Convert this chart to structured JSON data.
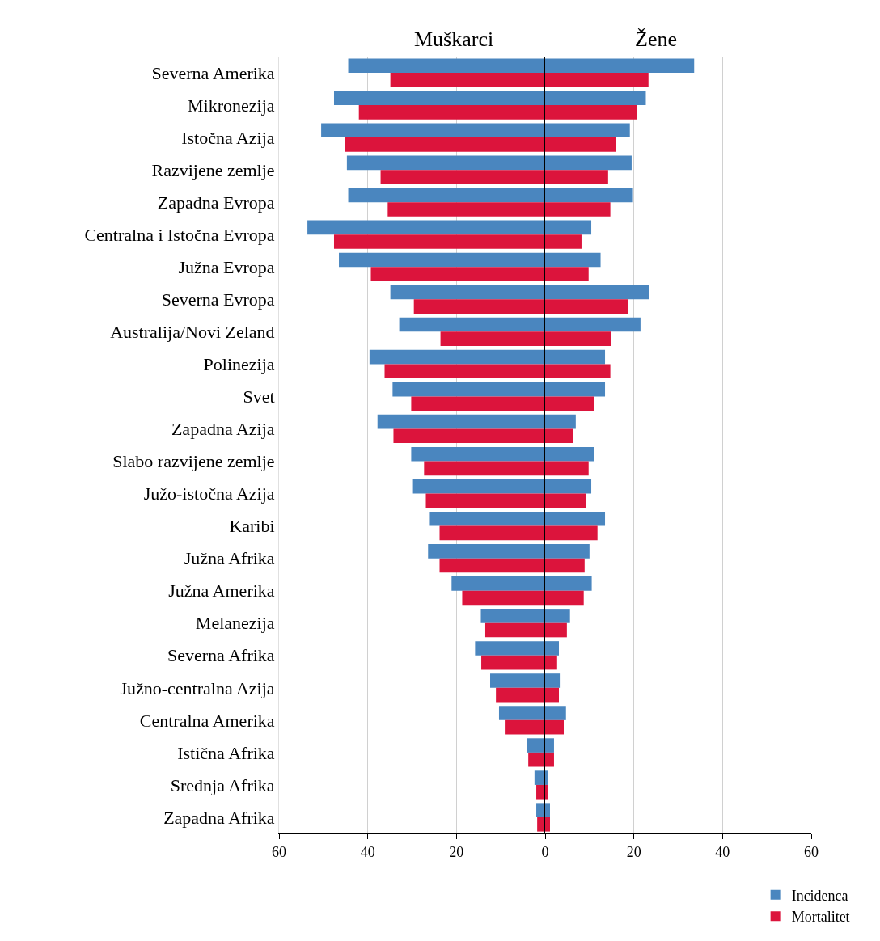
{
  "chart_data": [
    {
      "type": "bar",
      "orientation": "horizontal",
      "title": "Muškarci",
      "categories": [
        "Severna Amerika",
        "Mikronezija",
        "Istočna Azija",
        "Razvijene zemlje",
        "Zapadna Evropa",
        "Centralna i Istočna Evropa",
        "Južna Evropa",
        "Severna Evropa",
        "Australija/Novi Zeland",
        "Polinezija",
        "Svet",
        "Zapadna Azija",
        "Slabo razvijene zemlje",
        "Južo-istočna Azija",
        "Karibi",
        "Južna Afrika",
        "Južna Amerika",
        "Melanezija",
        "Severna Afrika",
        "Južno-centralna Azija",
        "Centralna Amerika",
        "Istična Afrika",
        "Srednja Afrika",
        "Zapadna Afrika"
      ],
      "series": [
        {
          "color": "#4a86bf",
          "values": [
            -44.4,
            -47.6,
            -50.5,
            -44.7,
            -44.4,
            -53.6,
            -46.5,
            -34.9,
            -32.9,
            -39.6,
            -34.4,
            -37.8,
            -30.2,
            -29.8,
            -26.0,
            -26.4,
            -21.1,
            -14.5,
            -15.8,
            -12.4,
            -10.4,
            -4.2,
            -2.4,
            -2.0
          ]
        },
        {
          "color": "#dc143c",
          "values": [
            -34.9,
            -42.0,
            -45.1,
            -37.1,
            -35.5,
            -47.6,
            -39.3,
            -29.6,
            -23.6,
            -36.2,
            -30.2,
            -34.2,
            -27.3,
            -26.9,
            -23.8,
            -23.8,
            -18.7,
            -13.5,
            -14.4,
            -11.1,
            -9.1,
            -3.8,
            -2.0,
            -1.8
          ]
        }
      ],
      "xlim": [
        -60,
        0
      ],
      "xticks": [
        {
          "value": -60,
          "label": "60"
        },
        {
          "value": -40,
          "label": "40"
        },
        {
          "value": -20,
          "label": "20"
        },
        {
          "value": 0,
          "label": null
        }
      ],
      "grid": "x"
    },
    {
      "type": "bar",
      "orientation": "horizontal",
      "title": "Žene",
      "categories": [
        "Severna Amerika",
        "Mikronezija",
        "Istočna Azija",
        "Razvijene zemlje",
        "Zapadna Evropa",
        "Centralna i Istočna Evropa",
        "Južna Evropa",
        "Severna Evropa",
        "Australija/Novi Zeland",
        "Polinezija",
        "Svet",
        "Zapadna Azija",
        "Slabo razvijene zemlje",
        "Južo-istočna Azija",
        "Karibi",
        "Južna Afrika",
        "Južna Amerika",
        "Melanezija",
        "Severna Afrika",
        "Južno-centralna Azija",
        "Centralna Amerika",
        "Istična Afrika",
        "Srednja Afrika",
        "Zapadna Afrika"
      ],
      "series": [
        {
          "name": "Incidenca",
          "color": "#4a86bf",
          "values": [
            33.6,
            22.7,
            19.1,
            19.5,
            19.8,
            10.4,
            12.5,
            23.5,
            21.5,
            13.5,
            13.5,
            6.9,
            11.1,
            10.4,
            13.5,
            10.0,
            10.5,
            5.6,
            3.1,
            3.3,
            4.7,
            2.0,
            0.7,
            1.1
          ]
        },
        {
          "name": "Mortalitet",
          "color": "#dc143c",
          "values": [
            23.3,
            20.7,
            16.0,
            14.2,
            14.7,
            8.2,
            9.8,
            18.7,
            14.9,
            14.7,
            11.1,
            6.2,
            9.8,
            9.3,
            11.8,
            8.9,
            8.7,
            4.9,
            2.7,
            3.1,
            4.2,
            2.0,
            0.7,
            1.1
          ]
        }
      ],
      "xlim": [
        0,
        60
      ],
      "xticks": [
        0,
        20,
        40,
        60
      ],
      "grid": "x",
      "tick_labels": "x",
      "legend": "bottom right"
    }
  ]
}
